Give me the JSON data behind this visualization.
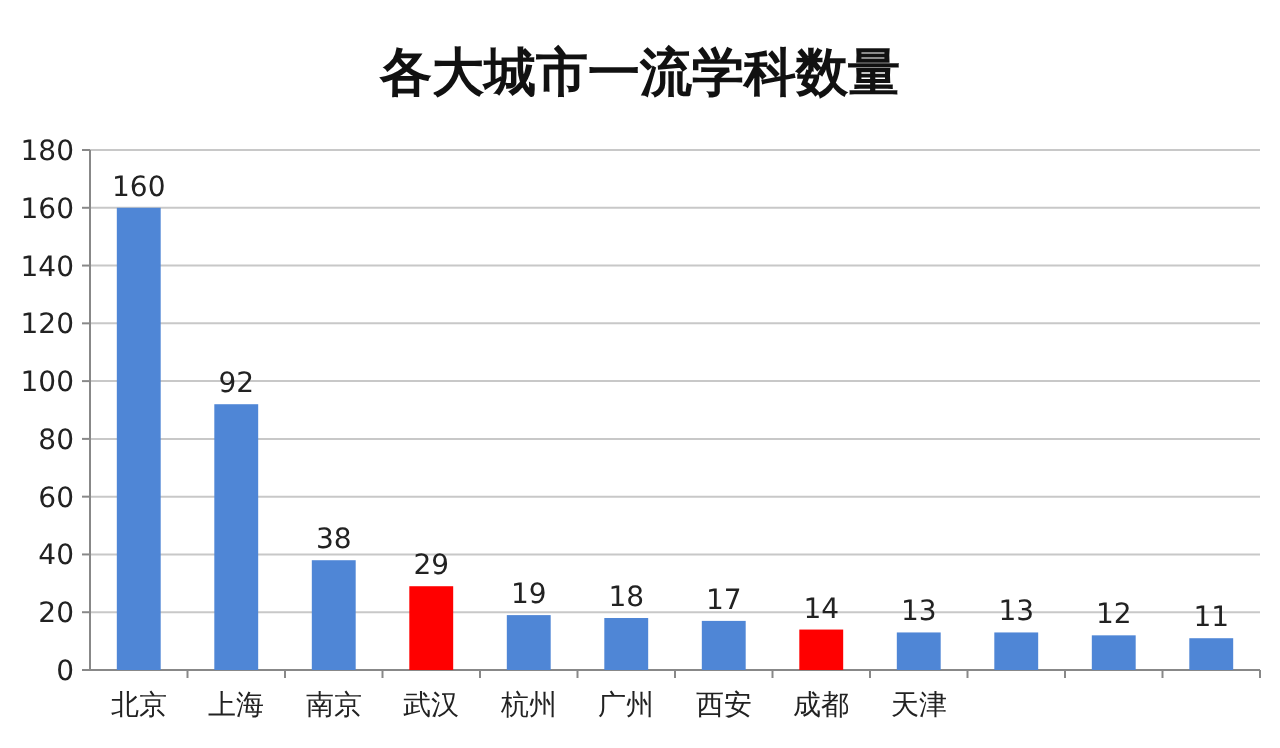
{
  "chart_data": {
    "type": "bar",
    "title": "各大城市一流学科数量",
    "categories": [
      "北京",
      "上海",
      "南京",
      "武汉",
      "杭州",
      "广州",
      "西安",
      "成都",
      "天津",
      null,
      null,
      null
    ],
    "values": [
      160,
      92,
      38,
      29,
      19,
      18,
      17,
      14,
      13,
      13,
      12,
      11
    ],
    "colors": [
      "#4f86d6",
      "#4f86d6",
      "#4f86d6",
      "#ff0000",
      "#4f86d6",
      "#4f86d6",
      "#4f86d6",
      "#ff0000",
      "#4f86d6",
      "#4f86d6",
      "#4f86d6",
      "#4f86d6"
    ],
    "ylim": [
      0,
      180
    ],
    "yticks": [
      0,
      20,
      40,
      60,
      80,
      100,
      120,
      140,
      160,
      180
    ],
    "grid": "y",
    "data_labels": true
  }
}
